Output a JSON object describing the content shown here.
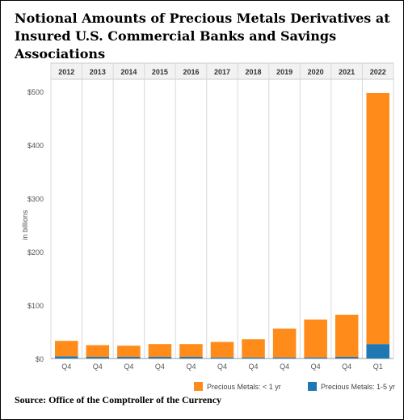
{
  "title": "Notional Amounts of Precious Metals Derivatives at Insured U.S. Commercial Banks and Savings Associations",
  "source": "Source: Office of the Comptroller of the Currency",
  "chart_data": {
    "type": "bar",
    "stacked": true,
    "title": "Notional Amounts of Precious Metals Derivatives at Insured U.S. Commercial Banks and Savings Associations",
    "ylabel": "in billions",
    "ylim": [
      0,
      500
    ],
    "yticks": [
      0,
      100,
      200,
      300,
      400,
      500
    ],
    "ytick_labels": [
      "$0",
      "$100",
      "$200",
      "$300",
      "$400",
      "$500"
    ],
    "categories": [
      "2012",
      "2013",
      "2014",
      "2015",
      "2016",
      "2017",
      "2018",
      "2019",
      "2020",
      "2021",
      "2022"
    ],
    "quarters": [
      "Q4",
      "Q4",
      "Q4",
      "Q4",
      "Q4",
      "Q4",
      "Q4",
      "Q4",
      "Q4",
      "Q4",
      "Q1"
    ],
    "series": [
      {
        "name": "Precious Metals: 1-5 yr",
        "color": "#1f77b4",
        "values": [
          4,
          3,
          3,
          3,
          3,
          2,
          2,
          2,
          2,
          3,
          27
        ]
      },
      {
        "name": "Precious Metals: < 1 yr",
        "color": "#ff8c1a",
        "values": [
          29,
          22,
          21,
          24,
          24,
          29,
          34,
          54,
          71,
          79,
          470
        ]
      }
    ],
    "grid": true,
    "legend": "bottom-right"
  }
}
